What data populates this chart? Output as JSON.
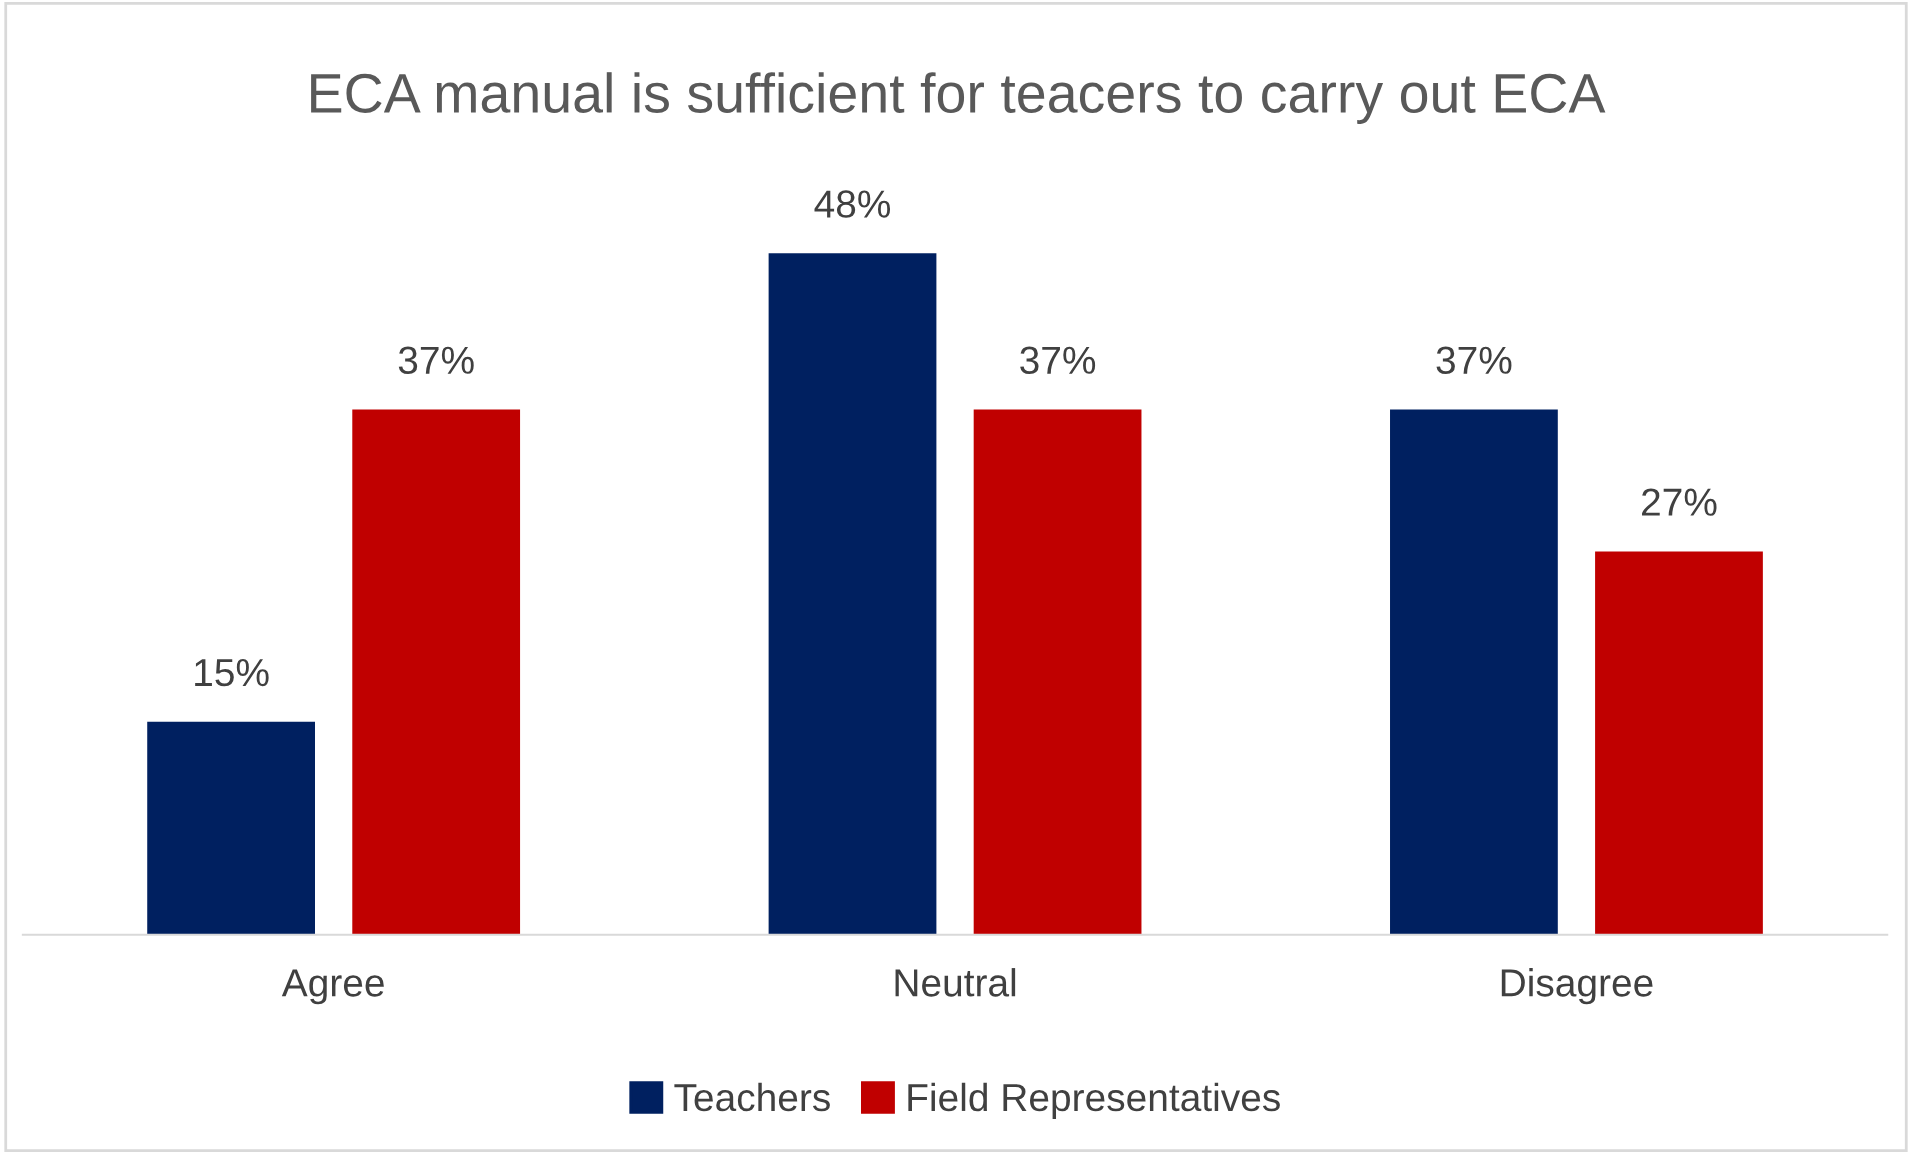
{
  "chart_data": {
    "type": "bar",
    "title": "ECA manual is sufficient for teacers to carry out ECA",
    "categories": [
      "Agree",
      "Neutral",
      "Disagree"
    ],
    "series": [
      {
        "name": "Teachers",
        "color": "#002060",
        "values": [
          15,
          48,
          37
        ],
        "value_labels": [
          "15%",
          "48%",
          "37%"
        ]
      },
      {
        "name": "Field Representatives",
        "color": "#c00000",
        "values": [
          37,
          37,
          27
        ],
        "value_labels": [
          "37%",
          "37%",
          "27%"
        ]
      }
    ],
    "legend": "bottom",
    "grid": false
  }
}
